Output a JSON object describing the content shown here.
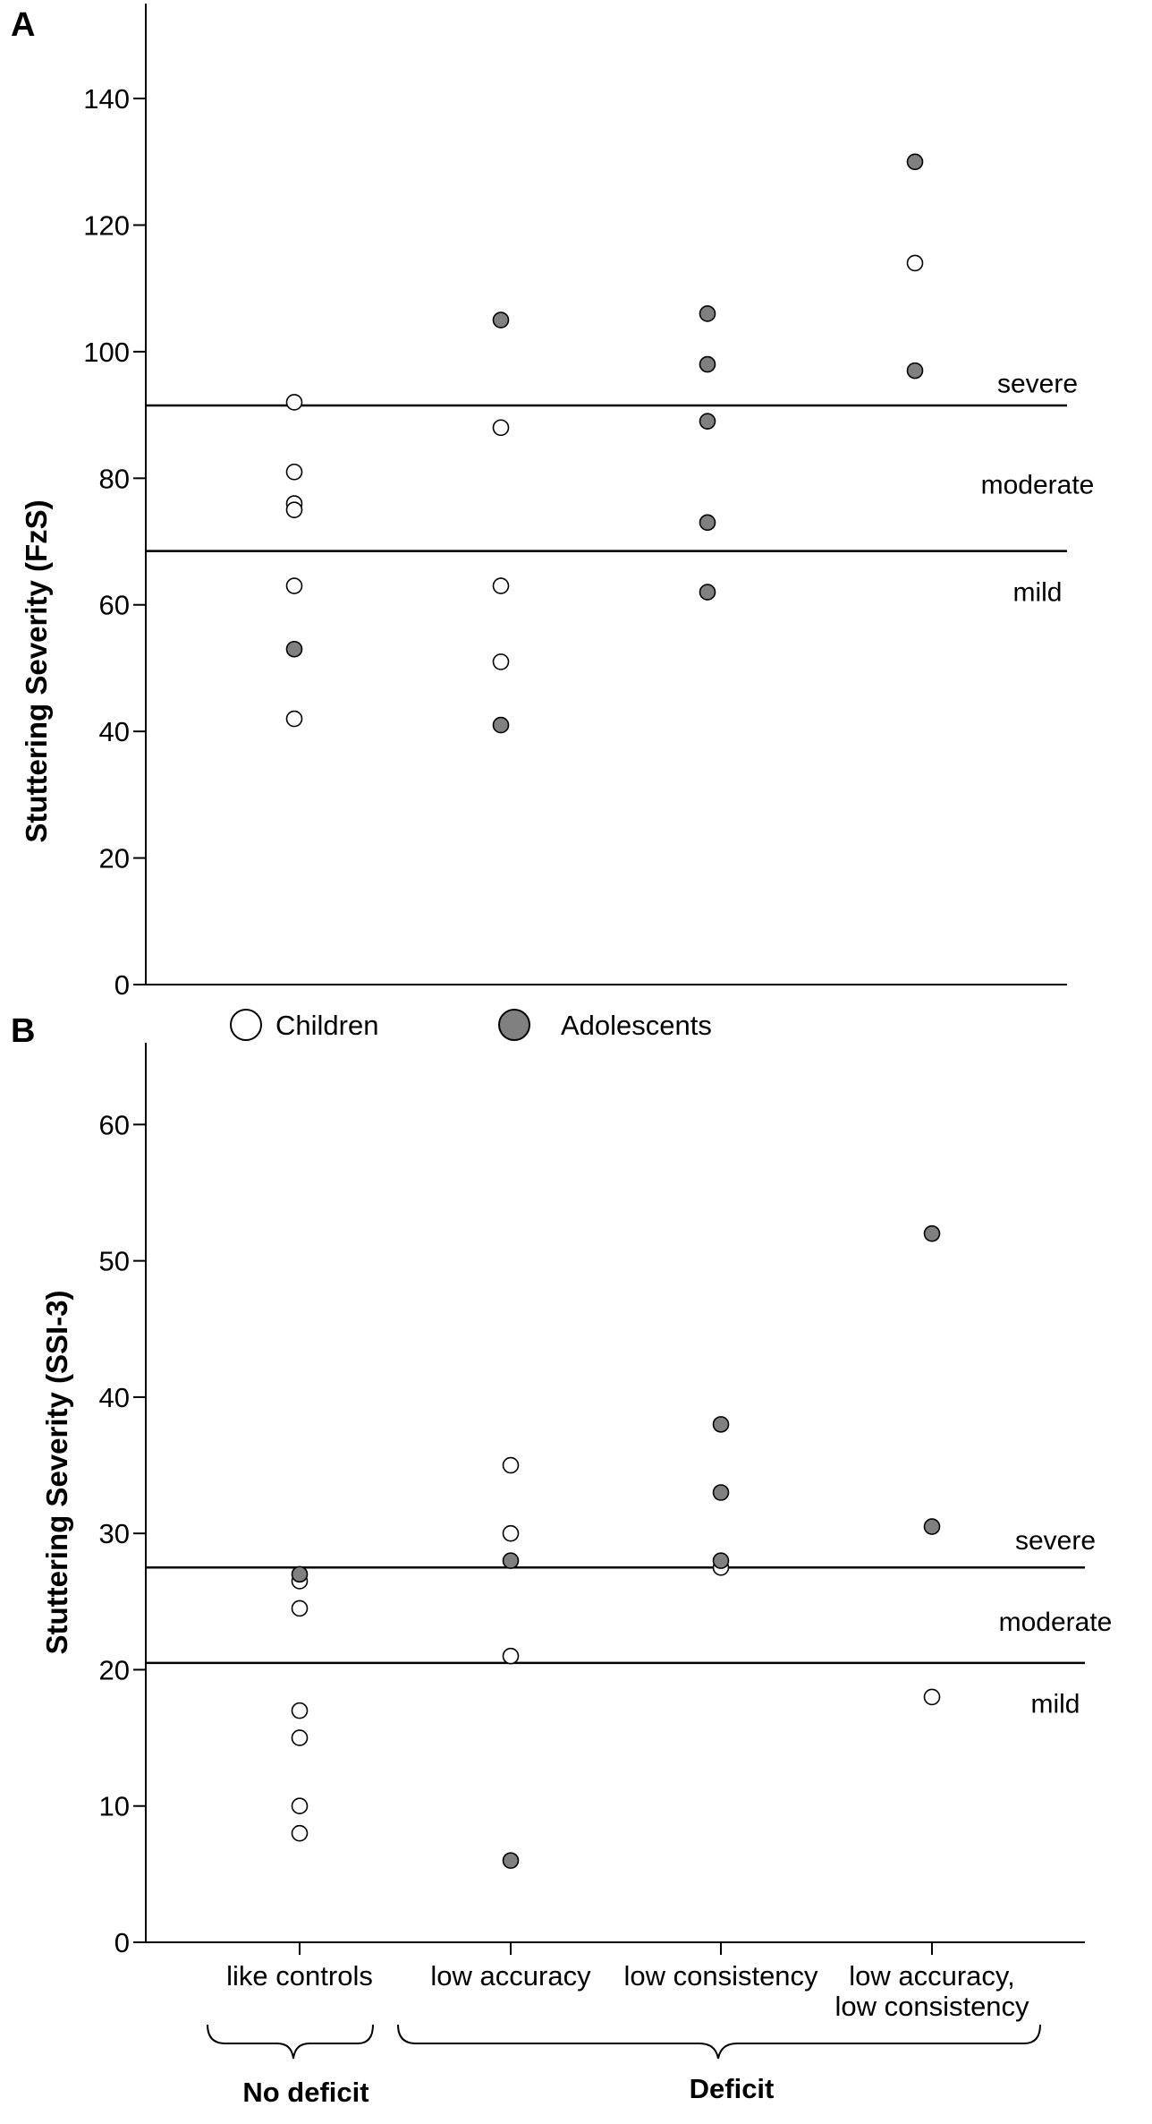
{
  "chart_data": [
    {
      "type": "scatter",
      "panel": "A",
      "ylabel": "Stuttering Severity (FzS)",
      "ylim": [
        0,
        155
      ],
      "yticks": [
        0,
        20,
        40,
        60,
        80,
        100,
        120,
        140
      ],
      "categories": [
        "like controls",
        "low accuracy",
        "low consistency",
        "low accuracy,\nlow consistency"
      ],
      "severity_thresholds": [
        {
          "value": 91.5
        },
        {
          "value": 68.5
        }
      ],
      "severity_labels": [
        {
          "label": "severe",
          "value": 95
        },
        {
          "label": "moderate",
          "value": 79
        },
        {
          "label": "mild",
          "value": 62
        }
      ],
      "series": [
        {
          "name": "Children",
          "color": "#ffffff",
          "points": [
            {
              "x": 0,
              "y": 92
            },
            {
              "x": 0,
              "y": 81
            },
            {
              "x": 0,
              "y": 76
            },
            {
              "x": 0,
              "y": 75
            },
            {
              "x": 0,
              "y": 63
            },
            {
              "x": 0,
              "y": 42
            },
            {
              "x": 1,
              "y": 88
            },
            {
              "x": 1,
              "y": 63
            },
            {
              "x": 1,
              "y": 51
            },
            {
              "x": 3,
              "y": 114
            }
          ]
        },
        {
          "name": "Adolescents",
          "color": "#808080",
          "points": [
            {
              "x": 0,
              "y": 53
            },
            {
              "x": 1,
              "y": 105
            },
            {
              "x": 1,
              "y": 41
            },
            {
              "x": 2,
              "y": 106
            },
            {
              "x": 2,
              "y": 98
            },
            {
              "x": 2,
              "y": 89
            },
            {
              "x": 2,
              "y": 73
            },
            {
              "x": 2,
              "y": 62
            },
            {
              "x": 3,
              "y": 130
            },
            {
              "x": 3,
              "y": 97
            }
          ]
        }
      ]
    },
    {
      "type": "scatter",
      "panel": "B",
      "ylabel": "Stuttering Severity (SSI-3)",
      "ylim": [
        0,
        66
      ],
      "yticks": [
        0,
        10,
        20,
        30,
        40,
        50,
        60
      ],
      "categories": [
        "like controls",
        "low accuracy",
        "low consistency",
        "low accuracy,\nlow consistency"
      ],
      "category_labels": [
        "like controls",
        "low accuracy",
        "low consistency",
        "low accuracy,",
        "low consistency"
      ],
      "severity_thresholds": [
        {
          "value": 27.5
        },
        {
          "value": 20.5
        }
      ],
      "severity_labels": [
        {
          "label": "severe",
          "value": 29.5
        },
        {
          "label": "moderate",
          "value": 23.5
        },
        {
          "label": "mild",
          "value": 17.5
        }
      ],
      "series": [
        {
          "name": "Children",
          "color": "#ffffff",
          "points": [
            {
              "x": 0,
              "y": 26.5
            },
            {
              "x": 0,
              "y": 24.5
            },
            {
              "x": 0,
              "y": 17
            },
            {
              "x": 0,
              "y": 15
            },
            {
              "x": 0,
              "y": 10
            },
            {
              "x": 0,
              "y": 8
            },
            {
              "x": 1,
              "y": 35
            },
            {
              "x": 1,
              "y": 30
            },
            {
              "x": 1,
              "y": 21
            },
            {
              "x": 2,
              "y": 27.5
            },
            {
              "x": 3,
              "y": 18
            }
          ]
        },
        {
          "name": "Adolescents",
          "color": "#808080",
          "points": [
            {
              "x": 0,
              "y": 27
            },
            {
              "x": 1,
              "y": 28
            },
            {
              "x": 1,
              "y": 6
            },
            {
              "x": 2,
              "y": 38
            },
            {
              "x": 2,
              "y": 33
            },
            {
              "x": 2,
              "y": 28
            },
            {
              "x": 3,
              "y": 52
            },
            {
              "x": 3,
              "y": 30.5
            }
          ]
        }
      ],
      "groups": [
        {
          "label": "No deficit",
          "from": 0,
          "to": 0
        },
        {
          "label": "Deficit",
          "from": 1,
          "to": 3
        }
      ]
    }
  ],
  "legend": [
    {
      "label": "Children",
      "color": "#ffffff"
    },
    {
      "label": "Adolescents",
      "color": "#808080"
    }
  ]
}
